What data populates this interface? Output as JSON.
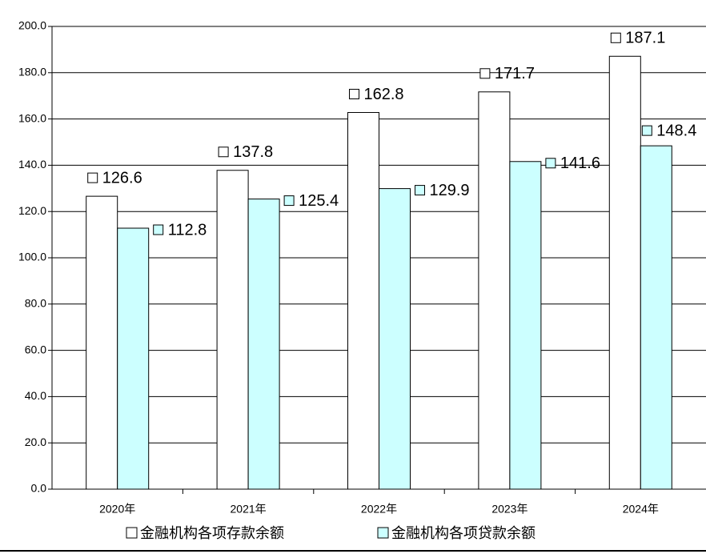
{
  "chart_data": {
    "type": "bar",
    "categories": [
      "2020年",
      "2021年",
      "2022年",
      "2023年",
      "2024年"
    ],
    "series": [
      {
        "name": "金融机构各项存款余额",
        "color": "#ffffff",
        "values": [
          126.6,
          137.8,
          162.8,
          171.7,
          187.1
        ]
      },
      {
        "name": "金融机构各项贷款余额",
        "color": "#ccffff",
        "values": [
          112.8,
          125.4,
          129.9,
          141.6,
          148.4
        ]
      }
    ],
    "ylim": [
      0,
      200
    ],
    "yticks": [
      {
        "value": 0,
        "label": "0.0"
      },
      {
        "value": 20,
        "label": "20.0"
      },
      {
        "value": 40,
        "label": "40.0"
      },
      {
        "value": 60,
        "label": "60.0"
      },
      {
        "value": 80,
        "label": "80.0"
      },
      {
        "value": 100,
        "label": "100.0"
      },
      {
        "value": 120,
        "label": "120.0"
      },
      {
        "value": 140,
        "label": "140.0"
      },
      {
        "value": 160,
        "label": "160.0"
      },
      {
        "value": 180,
        "label": "180.0"
      },
      {
        "value": 200,
        "label": "200.0"
      }
    ],
    "grid": true
  }
}
